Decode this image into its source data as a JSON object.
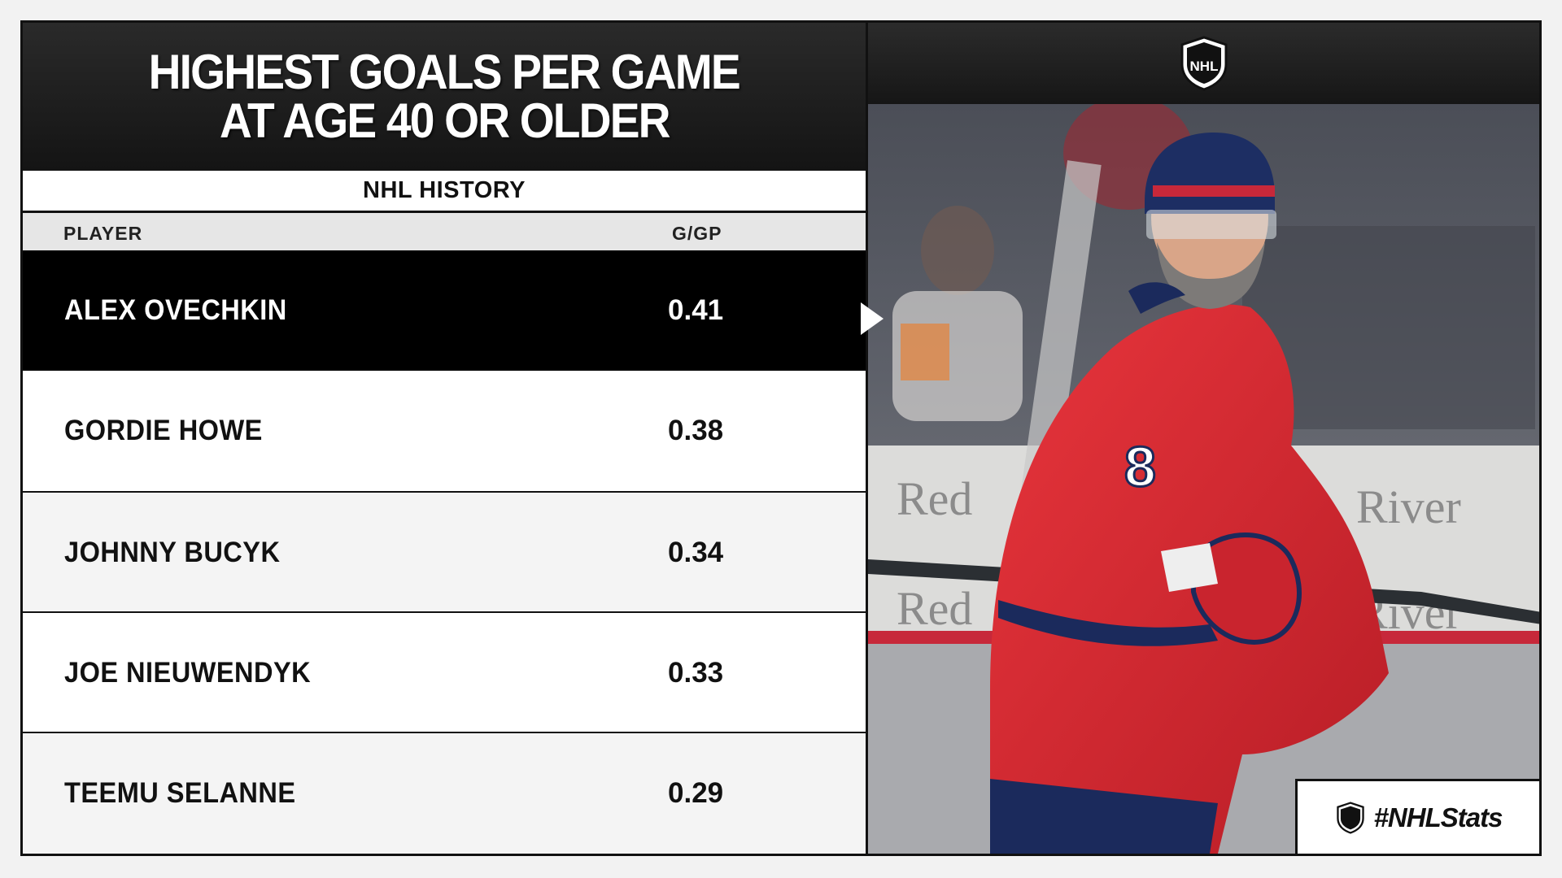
{
  "title": {
    "line1": "HIGHEST GOALS PER GAME",
    "line2": "AT AGE 40 OR OLDER"
  },
  "subtitle": "NHL HISTORY",
  "columns": {
    "player": "PLAYER",
    "stat": "G/GP"
  },
  "rows": [
    {
      "player": "ALEX OVECHKIN",
      "value": "0.41",
      "highlighted": true
    },
    {
      "player": "GORDIE HOWE",
      "value": "0.38",
      "highlighted": false
    },
    {
      "player": "JOHNNY BUCYK",
      "value": "0.34",
      "highlighted": false
    },
    {
      "player": "JOE NIEUWENDYK",
      "value": "0.33",
      "highlighted": false
    },
    {
      "player": "TEEMU SELANNE",
      "value": "0.29",
      "highlighted": false
    }
  ],
  "photo_sign_text": {
    "left": "Red",
    "right": "River"
  },
  "jersey_number": "8",
  "hashtag": "#NHLStats",
  "logo_text": "NHL",
  "icons": {
    "league_logo": "nhl-shield-logo",
    "pointer": "triangle-pointer-icon"
  },
  "colors": {
    "header_bg": "#1c1c1c",
    "highlight_row": "#000000",
    "jersey_red": "#d7282f",
    "navy": "#1b2a5c"
  }
}
